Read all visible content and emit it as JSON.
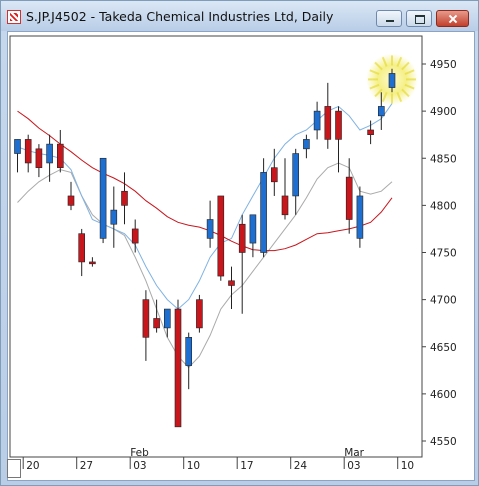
{
  "window": {
    "title": "S.JP.J4502 - Takeda Chemical Industries Ltd, Daily"
  },
  "chart_data": {
    "type": "candlestick",
    "ylim": [
      4540,
      4980
    ],
    "y_ticks": [
      "4950",
      "4900",
      "4850",
      "4800",
      "4750",
      "4700",
      "4650",
      "4600",
      "4550"
    ],
    "y_tick_values": [
      4950,
      4900,
      4850,
      4800,
      4750,
      4700,
      4650,
      4600,
      4550
    ],
    "x_ticks": [
      {
        "label": "20",
        "index": 1
      },
      {
        "label": "27",
        "index": 6
      },
      {
        "label": "03",
        "index": 11
      },
      {
        "label": "10",
        "index": 16
      },
      {
        "label": "17",
        "index": 21
      },
      {
        "label": "24",
        "index": 26
      },
      {
        "label": "03",
        "index": 31
      },
      {
        "label": "10",
        "index": 36
      }
    ],
    "month_labels": [
      {
        "label": "Feb",
        "index": 11
      },
      {
        "label": "Mar",
        "index": 31
      }
    ],
    "colors": {
      "up": "#1f6fd1",
      "down": "#c8161d",
      "ma_fast": "#7fb2e3",
      "ma_mid": "#aaaaaa",
      "ma_slow": "#c8161d"
    },
    "candles": [
      {
        "o": 4855,
        "h": 4870,
        "l": 4835,
        "c": 4870
      },
      {
        "o": 4870,
        "h": 4875,
        "l": 4835,
        "c": 4845
      },
      {
        "o": 4860,
        "h": 4865,
        "l": 4830,
        "c": 4840
      },
      {
        "o": 4845,
        "h": 4875,
        "l": 4825,
        "c": 4865
      },
      {
        "o": 4865,
        "h": 4880,
        "l": 4835,
        "c": 4840
      },
      {
        "o": 4810,
        "h": 4825,
        "l": 4795,
        "c": 4800
      },
      {
        "o": 4770,
        "h": 4775,
        "l": 4725,
        "c": 4740
      },
      {
        "o": 4740,
        "h": 4745,
        "l": 4735,
        "c": 4738
      },
      {
        "o": 4765,
        "h": 4850,
        "l": 4760,
        "c": 4850
      },
      {
        "o": 4780,
        "h": 4820,
        "l": 4755,
        "c": 4795
      },
      {
        "o": 4815,
        "h": 4835,
        "l": 4780,
        "c": 4800
      },
      {
        "o": 4775,
        "h": 4785,
        "l": 4750,
        "c": 4760
      },
      {
        "o": 4700,
        "h": 4710,
        "l": 4635,
        "c": 4660
      },
      {
        "o": 4680,
        "h": 4700,
        "l": 4665,
        "c": 4670
      },
      {
        "o": 4670,
        "h": 4690,
        "l": 4660,
        "c": 4690
      },
      {
        "o": 4690,
        "h": 4700,
        "l": 4565,
        "c": 4565
      },
      {
        "o": 4630,
        "h": 4665,
        "l": 4605,
        "c": 4660
      },
      {
        "o": 4700,
        "h": 4705,
        "l": 4665,
        "c": 4670
      },
      {
        "o": 4765,
        "h": 4805,
        "l": 4755,
        "c": 4785
      },
      {
        "o": 4810,
        "h": 4810,
        "l": 4720,
        "c": 4725
      },
      {
        "o": 4720,
        "h": 4735,
        "l": 4690,
        "c": 4715
      },
      {
        "o": 4780,
        "h": 4790,
        "l": 4685,
        "c": 4750
      },
      {
        "o": 4760,
        "h": 4790,
        "l": 4745,
        "c": 4790
      },
      {
        "o": 4750,
        "h": 4850,
        "l": 4745,
        "c": 4835
      },
      {
        "o": 4840,
        "h": 4860,
        "l": 4810,
        "c": 4825
      },
      {
        "o": 4810,
        "h": 4850,
        "l": 4785,
        "c": 4790
      },
      {
        "o": 4810,
        "h": 4860,
        "l": 4790,
        "c": 4855
      },
      {
        "o": 4860,
        "h": 4875,
        "l": 4850,
        "c": 4870
      },
      {
        "o": 4880,
        "h": 4910,
        "l": 4870,
        "c": 4900
      },
      {
        "o": 4905,
        "h": 4930,
        "l": 4860,
        "c": 4870
      },
      {
        "o": 4900,
        "h": 4905,
        "l": 4835,
        "c": 4870
      },
      {
        "o": 4830,
        "h": 4850,
        "l": 4770,
        "c": 4785
      },
      {
        "o": 4765,
        "h": 4820,
        "l": 4755,
        "c": 4810
      },
      {
        "o": 4880,
        "h": 4890,
        "l": 4865,
        "c": 4875
      },
      {
        "o": 4895,
        "h": 4920,
        "l": 4880,
        "c": 4905
      },
      {
        "o": 4925,
        "h": 4945,
        "l": 4920,
        "c": 4940
      }
    ],
    "ma_fast": [
      4862,
      4858,
      4855,
      4853,
      4850,
      4838,
      4810,
      4785,
      4780,
      4775,
      4770,
      4758,
      4735,
      4715,
      4700,
      4690,
      4700,
      4720,
      4745,
      4760,
      4765,
      4790,
      4810,
      4830,
      4850,
      4865,
      4875,
      4880,
      4890,
      4900,
      4905,
      4895,
      4880,
      4885,
      4892,
      4908
    ],
    "ma_mid": [
      4803,
      4815,
      4825,
      4832,
      4838,
      4835,
      4810,
      4790,
      4780,
      4775,
      4768,
      4745,
      4720,
      4690,
      4660,
      4640,
      4628,
      4640,
      4662,
      4690,
      4705,
      4715,
      4730,
      4745,
      4760,
      4775,
      4790,
      4808,
      4828,
      4840,
      4845,
      4840,
      4815,
      4812,
      4815,
      4825
    ],
    "ma_slow": [
      4900,
      4892,
      4882,
      4874,
      4865,
      4857,
      4848,
      4840,
      4834,
      4829,
      4823,
      4815,
      4805,
      4797,
      4788,
      4782,
      4779,
      4777,
      4773,
      4768,
      4762,
      4757,
      4753,
      4752,
      4752,
      4754,
      4758,
      4764,
      4770,
      4771,
      4773,
      4775,
      4778,
      4782,
      4793,
      4808
    ]
  }
}
